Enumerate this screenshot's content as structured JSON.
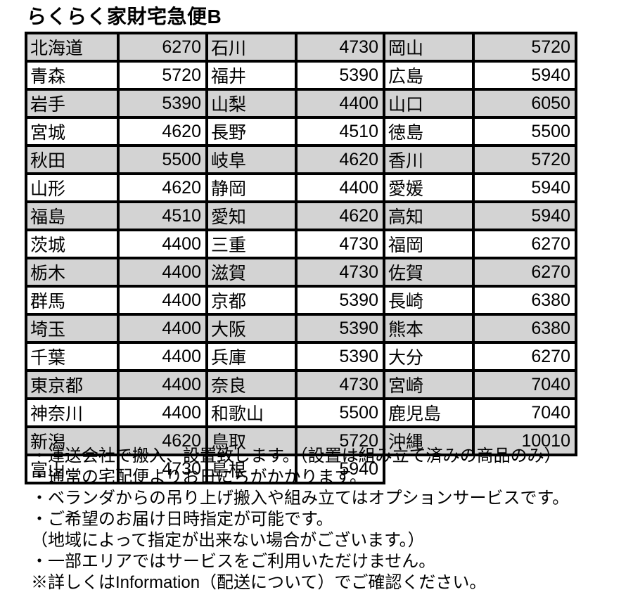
{
  "title": "らくらく家財宅急便B",
  "colors": {
    "row_shade": "#d3d3d3",
    "border": "#000000",
    "text": "#000000"
  },
  "table": {
    "columns": [
      "prefecture",
      "price",
      "prefecture",
      "price",
      "prefecture",
      "price"
    ],
    "rows": [
      [
        {
          "name": "北海道",
          "price": "6270"
        },
        {
          "name": "石川",
          "price": "4730"
        },
        {
          "name": "岡山",
          "price": "5720"
        }
      ],
      [
        {
          "name": "青森",
          "price": "5720"
        },
        {
          "name": "福井",
          "price": "5390"
        },
        {
          "name": "広島",
          "price": "5940"
        }
      ],
      [
        {
          "name": "岩手",
          "price": "5390"
        },
        {
          "name": "山梨",
          "price": "4400"
        },
        {
          "name": "山口",
          "price": "6050"
        }
      ],
      [
        {
          "name": "宮城",
          "price": "4620"
        },
        {
          "name": "長野",
          "price": "4510"
        },
        {
          "name": "徳島",
          "price": "5500"
        }
      ],
      [
        {
          "name": "秋田",
          "price": "5500"
        },
        {
          "name": "岐阜",
          "price": "4620"
        },
        {
          "name": "香川",
          "price": "5720"
        }
      ],
      [
        {
          "name": "山形",
          "price": "4620"
        },
        {
          "name": "静岡",
          "price": "4400"
        },
        {
          "name": "愛媛",
          "price": "5940"
        }
      ],
      [
        {
          "name": "福島",
          "price": "4510"
        },
        {
          "name": "愛知",
          "price": "4620"
        },
        {
          "name": "高知",
          "price": "5940"
        }
      ],
      [
        {
          "name": "茨城",
          "price": "4400"
        },
        {
          "name": "三重",
          "price": "4730"
        },
        {
          "name": "福岡",
          "price": "6270"
        }
      ],
      [
        {
          "name": "栃木",
          "price": "4400"
        },
        {
          "name": "滋賀",
          "price": "4730"
        },
        {
          "name": "佐賀",
          "price": "6270"
        }
      ],
      [
        {
          "name": "群馬",
          "price": "4400"
        },
        {
          "name": "京都",
          "price": "5390"
        },
        {
          "name": "長崎",
          "price": "6380"
        }
      ],
      [
        {
          "name": "埼玉",
          "price": "4400"
        },
        {
          "name": "大阪",
          "price": "5390"
        },
        {
          "name": "熊本",
          "price": "6380"
        }
      ],
      [
        {
          "name": "千葉",
          "price": "4400"
        },
        {
          "name": "兵庫",
          "price": "5390"
        },
        {
          "name": "大分",
          "price": "6270"
        }
      ],
      [
        {
          "name": "東京都",
          "price": "4400"
        },
        {
          "name": "奈良",
          "price": "4730"
        },
        {
          "name": "宮崎",
          "price": "7040"
        }
      ],
      [
        {
          "name": "神奈川",
          "price": "4400"
        },
        {
          "name": "和歌山",
          "price": "5500"
        },
        {
          "name": "鹿児島",
          "price": "7040"
        }
      ],
      [
        {
          "name": "新潟",
          "price": "4620"
        },
        {
          "name": "鳥取",
          "price": "5720"
        },
        {
          "name": "沖縄",
          "price": "10010"
        }
      ],
      [
        {
          "name": "富山",
          "price": "4730"
        },
        {
          "name": "島根",
          "price": "5940"
        },
        null
      ]
    ]
  },
  "notes": [
    "・運送会社で搬入、設置致します。（設置は組み立て済みの商品のみ）",
    "・通常の宅配便よりお日にちがかかります。",
    "・ベランダからの吊り上げ搬入や組み立てはオプションサービスです。",
    "・ご希望のお届け日時指定が可能です。",
    "（地域によって指定が出来ない場合がございます。）",
    "・一部エリアではサービスをご利用いただけません。",
    "※詳しくはInformation（配送について）でご確認ください。"
  ]
}
